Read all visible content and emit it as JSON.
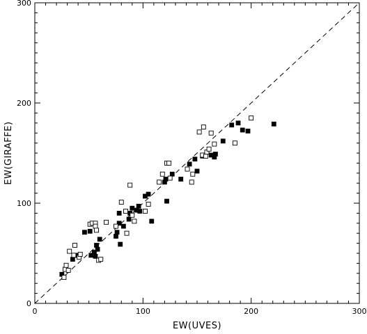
{
  "chart_data": {
    "type": "scatter",
    "title": "",
    "xlabel": "EW(UVES)",
    "ylabel": "EW(GIRAFFE)",
    "xlim": [
      0,
      300
    ],
    "ylim": [
      0,
      300
    ],
    "xticks": [
      {
        "value": 0,
        "label": "0"
      },
      {
        "value": 100,
        "label": "100"
      },
      {
        "value": 200,
        "label": "200"
      },
      {
        "value": 300,
        "label": "300"
      }
    ],
    "yticks": [
      {
        "value": 0,
        "label": "0"
      },
      {
        "value": 100,
        "label": "100"
      },
      {
        "value": 200,
        "label": "200"
      },
      {
        "value": 300,
        "label": "300"
      }
    ],
    "grid": false,
    "reference_line": {
      "style": "dashed",
      "from": [
        0,
        0
      ],
      "to": [
        300,
        300
      ]
    },
    "series": [
      {
        "marker": "filled-square",
        "color": "#000000",
        "points": [
          [
            25,
            29
          ],
          [
            35,
            44
          ],
          [
            38,
            48
          ],
          [
            46,
            71
          ],
          [
            51,
            72
          ],
          [
            52,
            48
          ],
          [
            55,
            51
          ],
          [
            56,
            47
          ],
          [
            57,
            58
          ],
          [
            58,
            54
          ],
          [
            60,
            64
          ],
          [
            75,
            67
          ],
          [
            76,
            71
          ],
          [
            78,
            80
          ],
          [
            78,
            90
          ],
          [
            79,
            59
          ],
          [
            82,
            77
          ],
          [
            87,
            84
          ],
          [
            88,
            90
          ],
          [
            90,
            95
          ],
          [
            94,
            93
          ],
          [
            96,
            97
          ],
          [
            97,
            92
          ],
          [
            102,
            107
          ],
          [
            105,
            109
          ],
          [
            108,
            82
          ],
          [
            120,
            121
          ],
          [
            121,
            124
          ],
          [
            122,
            102
          ],
          [
            127,
            129
          ],
          [
            135,
            124
          ],
          [
            143,
            139
          ],
          [
            148,
            144
          ],
          [
            150,
            132
          ],
          [
            155,
            147
          ],
          [
            163,
            148
          ],
          [
            166,
            146
          ],
          [
            167,
            149
          ],
          [
            174,
            162
          ],
          [
            182,
            178
          ],
          [
            188,
            180
          ],
          [
            192,
            173
          ],
          [
            197,
            172
          ],
          [
            221,
            179
          ]
        ]
      },
      {
        "marker": "open-square",
        "color": "#000000",
        "points": [
          [
            27,
            26
          ],
          [
            28,
            34
          ],
          [
            29,
            38
          ],
          [
            31,
            33
          ],
          [
            32,
            52
          ],
          [
            36,
            48
          ],
          [
            37,
            58
          ],
          [
            41,
            46
          ],
          [
            42,
            49
          ],
          [
            51,
            79
          ],
          [
            53,
            80
          ],
          [
            56,
            80
          ],
          [
            56,
            77
          ],
          [
            57,
            73
          ],
          [
            59,
            43
          ],
          [
            61,
            44
          ],
          [
            66,
            81
          ],
          [
            75,
            77
          ],
          [
            80,
            101
          ],
          [
            84,
            92
          ],
          [
            85,
            70
          ],
          [
            88,
            118
          ],
          [
            90,
            88
          ],
          [
            92,
            82
          ],
          [
            102,
            92
          ],
          [
            105,
            99
          ],
          [
            115,
            121
          ],
          [
            118,
            129
          ],
          [
            122,
            140
          ],
          [
            124,
            140
          ],
          [
            125,
            125
          ],
          [
            141,
            134
          ],
          [
            145,
            121
          ],
          [
            146,
            129
          ],
          [
            152,
            171
          ],
          [
            155,
            148
          ],
          [
            156,
            176
          ],
          [
            158,
            147
          ],
          [
            159,
            151
          ],
          [
            161,
            154
          ],
          [
            163,
            170
          ],
          [
            166,
            159
          ],
          [
            185,
            160
          ],
          [
            200,
            185
          ]
        ]
      }
    ]
  }
}
